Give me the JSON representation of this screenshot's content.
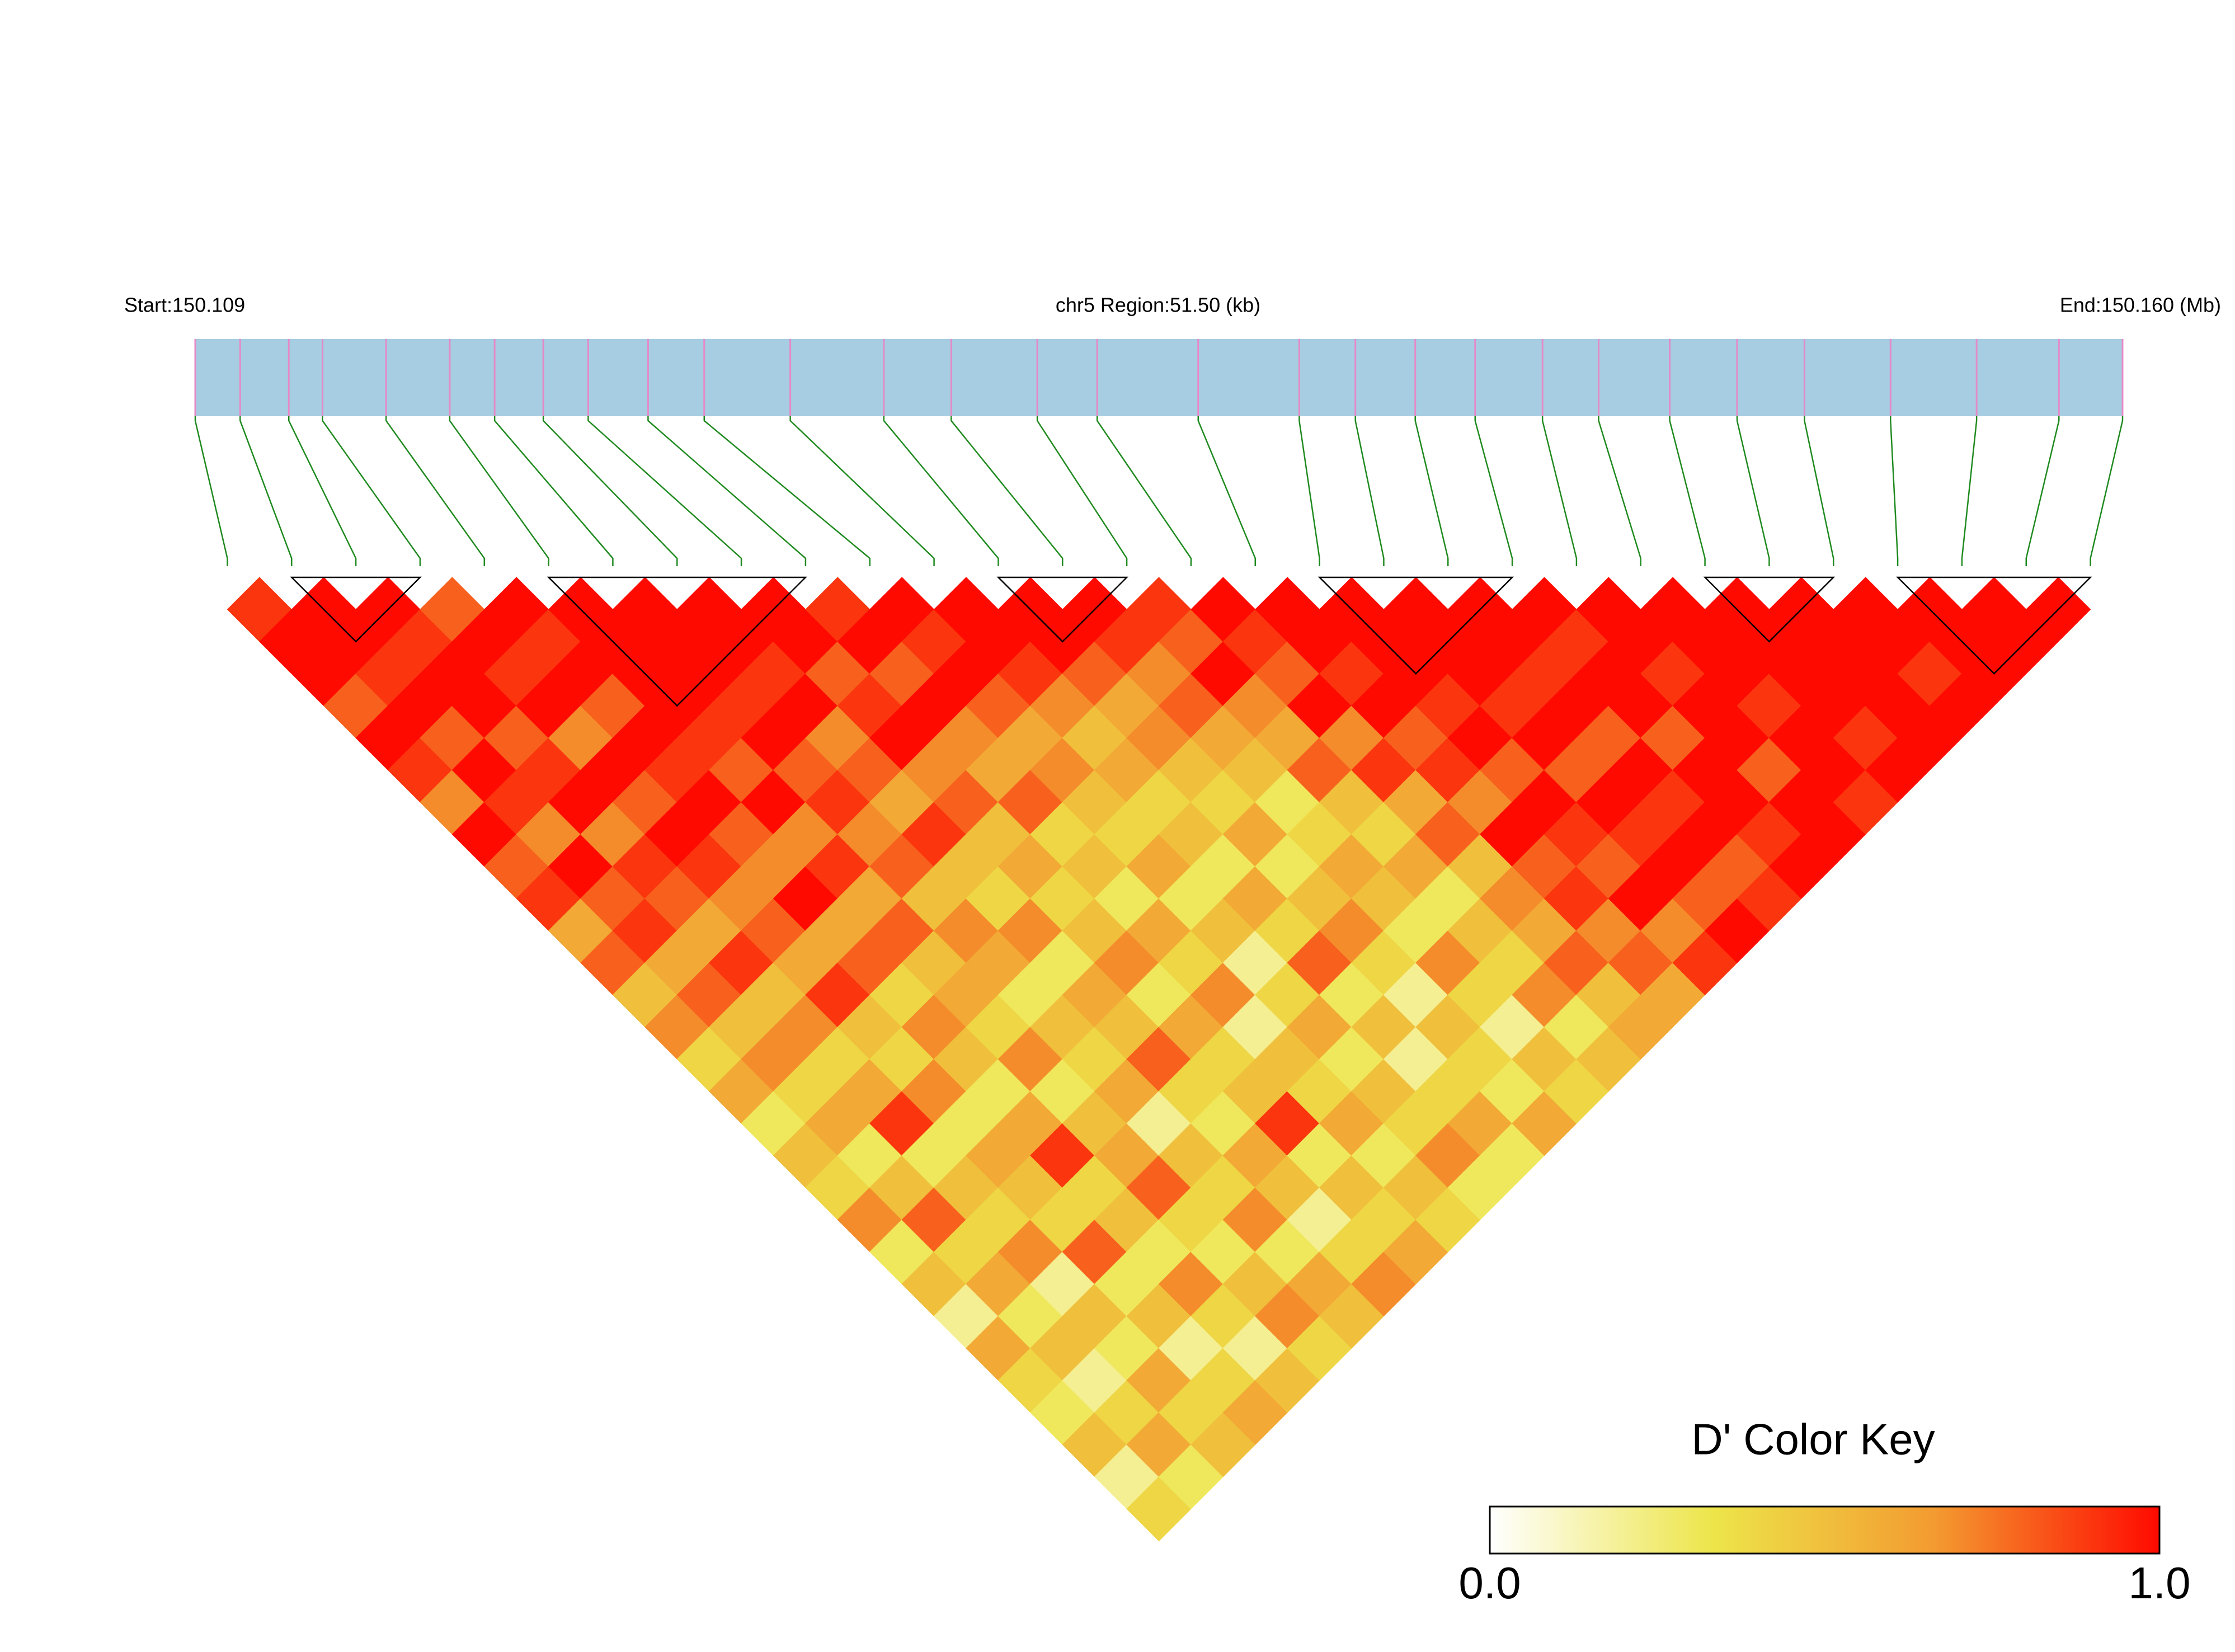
{
  "chart_data": {
    "type": "ld-heatmap",
    "start_label": "Start:150.109",
    "region_label": "chr5 Region:51.50 (kb)",
    "end_label": "End:150.160 (Mb)",
    "xlim": [
      0,
      51.5
    ],
    "snp_positions": [
      0,
      1.2,
      2.5,
      3.4,
      5.1,
      6.8,
      8.0,
      9.3,
      10.5,
      12.1,
      13.6,
      15.9,
      18.4,
      20.2,
      22.5,
      24.1,
      26.8,
      29.5,
      31.0,
      32.6,
      34.2,
      36.0,
      37.5,
      39.4,
      41.2,
      43.0,
      45.3,
      47.6,
      49.8,
      51.5
    ],
    "bar_color": "#a6cde1",
    "snp_color": "#e58ac8",
    "connector_color": "#1f8a1f",
    "ld": [
      [
        0.9,
        1,
        1,
        0.8,
        1,
        0.9,
        0.7,
        1,
        0.8,
        0.9,
        0.6,
        0.8,
        0.5,
        0.7,
        0.4,
        0.6,
        0.3,
        0.5,
        0.4,
        0.7,
        0.3,
        0.5,
        0.2,
        0.6,
        0.4,
        0.3,
        0.5,
        0.2,
        0.4
      ],
      [
        1,
        1,
        0.9,
        1,
        0.8,
        1,
        0.9,
        0.7,
        1,
        0.8,
        0.9,
        0.6,
        0.8,
        0.5,
        0.7,
        0.4,
        0.6,
        0.3,
        0.5,
        0.8,
        0.4,
        0.6,
        0.3,
        0.5,
        0.2,
        0.4,
        0.6,
        0.3
      ],
      [
        1,
        0.9,
        1,
        1,
        0.8,
        0.9,
        1,
        0.7,
        0.9,
        0.8,
        0.6,
        0.9,
        0.5,
        0.7,
        0.4,
        0.6,
        0.9,
        0.3,
        0.5,
        0.4,
        0.7,
        0.2,
        0.5,
        0.3,
        0.6,
        0.4,
        0.5
      ],
      [
        0.8,
        1,
        0.9,
        1,
        0.7,
        1,
        0.8,
        1,
        0.9,
        0.7,
        0.8,
        0.6,
        0.9,
        0.5,
        0.4,
        0.7,
        0.3,
        0.6,
        0.5,
        0.4,
        0.8,
        0.3,
        0.5,
        0.2,
        0.4,
        0.6
      ],
      [
        1,
        0.9,
        1,
        0.8,
        1,
        0.9,
        1,
        0.8,
        0.7,
        1,
        0.6,
        0.8,
        0.4,
        0.7,
        0.5,
        0.3,
        0.6,
        0.9,
        0.4,
        0.5,
        0.3,
        0.7,
        0.4,
        0.2,
        0.5
      ],
      [
        1,
        1,
        1,
        1,
        0.9,
        0.8,
        1,
        0.7,
        0.9,
        0.6,
        0.8,
        0.5,
        0.6,
        0.4,
        0.7,
        0.3,
        0.5,
        0.6,
        0.8,
        0.4,
        0.3,
        0.5,
        0.7,
        0.4
      ],
      [
        1,
        1,
        1,
        0.9,
        1,
        0.8,
        0.9,
        0.7,
        0.8,
        0.5,
        0.7,
        0.6,
        0.3,
        0.5,
        0.4,
        0.6,
        0.2,
        0.5,
        0.4,
        0.7,
        0.3,
        0.6,
        0.5
      ],
      [
        1,
        1,
        0.9,
        1,
        0.7,
        0.8,
        0.6,
        0.9,
        0.5,
        0.4,
        0.7,
        0.3,
        0.6,
        0.5,
        0.8,
        0.4,
        0.3,
        0.6,
        0.5,
        0.2,
        0.4,
        0.7
      ],
      [
        1,
        1,
        0.8,
        0.9,
        1,
        0.7,
        0.8,
        0.5,
        0.6,
        0.4,
        0.5,
        0.7,
        0.3,
        0.6,
        0.4,
        0.5,
        0.9,
        0.3,
        0.5,
        0.4,
        0.6
      ],
      [
        0.9,
        1,
        0.8,
        1,
        0.7,
        0.6,
        0.8,
        0.4,
        0.5,
        0.3,
        0.6,
        0.4,
        0.7,
        0.2,
        0.5,
        0.4,
        0.6,
        0.3,
        0.5,
        0.4
      ],
      [
        1,
        0.9,
        1,
        0.8,
        0.6,
        0.7,
        0.5,
        0.4,
        0.6,
        0.3,
        0.5,
        0.2,
        0.4,
        0.6,
        0.3,
        0.5,
        0.4,
        0.7,
        0.3
      ],
      [
        1,
        1,
        0.9,
        0.7,
        0.5,
        0.6,
        0.4,
        0.5,
        0.3,
        0.6,
        0.4,
        0.8,
        0.3,
        0.5,
        0.2,
        0.4,
        0.6,
        0.3
      ],
      [
        1,
        1,
        0.8,
        0.6,
        0.7,
        0.5,
        0.4,
        0.6,
        0.3,
        0.5,
        0.7,
        0.4,
        0.2,
        0.5,
        0.4,
        0.3,
        0.6
      ],
      [
        1,
        0.9,
        0.7,
        0.8,
        0.6,
        0.5,
        0.3,
        0.4,
        0.6,
        0.5,
        0.3,
        0.7,
        0.4,
        0.2,
        0.5,
        0.4
      ],
      [
        0.9,
        0.8,
        1,
        0.7,
        0.6,
        0.8,
        0.5,
        0.4,
        0.6,
        0.3,
        0.5,
        0.4,
        0.7,
        0.3,
        0.5
      ],
      [
        1,
        0.9,
        0.8,
        1,
        0.7,
        0.9,
        0.6,
        0.8,
        0.5,
        0.7,
        0.6,
        0.8,
        0.5,
        0.6
      ],
      [
        1,
        1,
        0.9,
        1,
        0.8,
        0.9,
        0.7,
        1,
        0.8,
        0.9,
        0.7,
        0.8,
        0.6
      ],
      [
        1,
        1,
        1,
        0.9,
        1,
        0.8,
        1,
        0.9,
        0.8,
        1,
        0.7,
        0.9
      ],
      [
        1,
        1,
        1,
        0.9,
        1,
        0.8,
        1,
        0.9,
        1,
        0.8,
        1
      ],
      [
        1,
        1,
        0.9,
        1,
        0.8,
        1,
        0.9,
        1,
        0.8,
        0.9
      ],
      [
        1,
        0.9,
        1,
        1,
        0.8,
        1,
        1,
        0.9,
        1
      ],
      [
        1,
        1,
        0.9,
        1,
        1,
        0.8,
        1,
        1
      ],
      [
        1,
        1,
        1,
        0.9,
        1,
        1,
        0.9
      ],
      [
        1,
        1,
        1,
        1,
        0.9,
        1
      ],
      [
        1,
        1,
        1,
        1,
        1
      ],
      [
        1,
        1,
        0.9,
        1
      ],
      [
        1,
        1,
        1
      ],
      [
        1,
        1
      ],
      [
        1
      ]
    ],
    "blocks": [
      [
        1,
        3
      ],
      [
        5,
        9
      ],
      [
        12,
        14
      ],
      [
        17,
        20
      ],
      [
        23,
        25
      ],
      [
        26,
        29
      ]
    ],
    "colors": [
      "#ffffff",
      "#ede54a",
      "#f39a30",
      "#ff0a00"
    ],
    "key_title": "D' Color Key",
    "clim": [
      0,
      1
    ],
    "key_ticks": [
      {
        "value": 0,
        "label": "0.0"
      },
      {
        "value": 1,
        "label": "1.0"
      }
    ]
  }
}
